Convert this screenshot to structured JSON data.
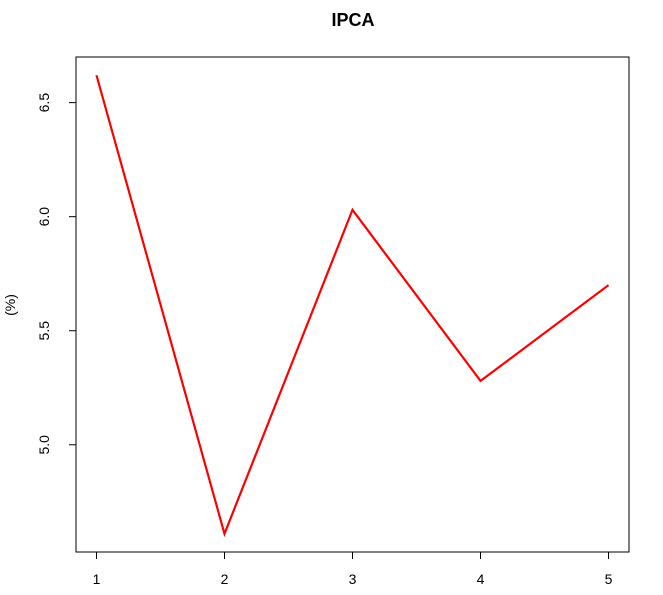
{
  "chart_data": {
    "type": "line",
    "title": "IPCA",
    "xlabel": "",
    "ylabel": "(%)",
    "x": [
      1,
      2,
      3,
      4,
      5
    ],
    "series": [
      {
        "values": [
          6.62,
          4.61,
          6.03,
          5.28,
          5.7
        ],
        "color": "#ff0000"
      }
    ],
    "xticks": [
      "1",
      "2",
      "3",
      "4",
      "5"
    ],
    "yticks": [
      "5.0",
      "5.5",
      "6.0",
      "6.5"
    ],
    "xlim": [
      0.84,
      5.16
    ],
    "ylim": [
      4.53,
      6.7
    ],
    "grid": false
  }
}
